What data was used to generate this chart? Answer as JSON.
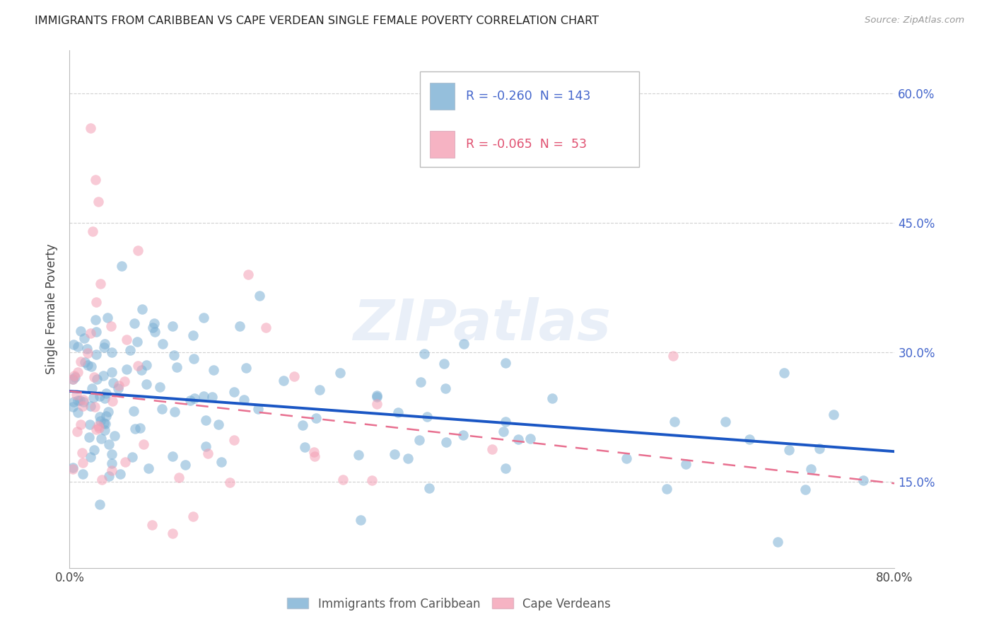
{
  "title": "IMMIGRANTS FROM CARIBBEAN VS CAPE VERDEAN SINGLE FEMALE POVERTY CORRELATION CHART",
  "source": "Source: ZipAtlas.com",
  "ylabel": "Single Female Poverty",
  "xmin": 0.0,
  "xmax": 0.8,
  "ymin": 0.05,
  "ymax": 0.65,
  "yticks_right": [
    0.15,
    0.3,
    0.45,
    0.6
  ],
  "ytick_right_labels": [
    "15.0%",
    "30.0%",
    "45.0%",
    "60.0%"
  ],
  "xtick_positions": [
    0.0,
    0.1,
    0.2,
    0.3,
    0.4,
    0.5,
    0.6,
    0.7,
    0.8
  ],
  "xtick_labels": [
    "0.0%",
    "",
    "",
    "",
    "",
    "",
    "",
    "",
    "80.0%"
  ],
  "blue_R": -0.26,
  "blue_N": 143,
  "pink_R": -0.065,
  "pink_N": 53,
  "blue_color": "#7BAFD4",
  "pink_color": "#F4A0B5",
  "blue_line_color": "#1A56C4",
  "pink_line_color": "#E87090",
  "grid_color": "#CCCCCC",
  "right_axis_color": "#4466CC",
  "watermark": "ZIPatlas",
  "watermark_color": "#C8D8EE",
  "blue_line_x0": 0.0,
  "blue_line_y0": 0.255,
  "blue_line_x1": 0.8,
  "blue_line_y1": 0.185,
  "pink_line_x0": 0.0,
  "pink_line_y0": 0.255,
  "pink_line_x1": 0.8,
  "pink_line_y1": 0.148
}
